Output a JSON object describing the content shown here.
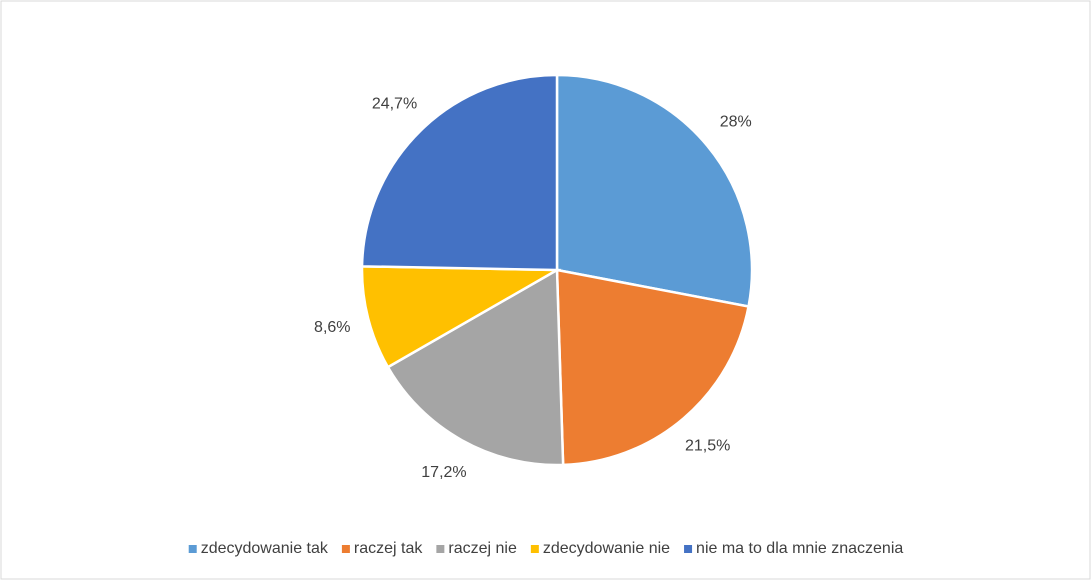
{
  "chart_data": {
    "type": "pie",
    "categories": [
      "zdecydowanie tak",
      "raczej tak",
      "raczej nie",
      "zdecydowanie nie",
      "nie ma to dla mnie znaczenia"
    ],
    "values": [
      28,
      21.5,
      17.2,
      8.6,
      24.7
    ],
    "value_labels": [
      "28%",
      "21,5%",
      "17,2%",
      "8,6%",
      "24,7%"
    ],
    "colors": [
      "#5b9bd5",
      "#ed7d31",
      "#a5a5a5",
      "#ffc000",
      "#4472c4"
    ],
    "legend": "bottom"
  }
}
